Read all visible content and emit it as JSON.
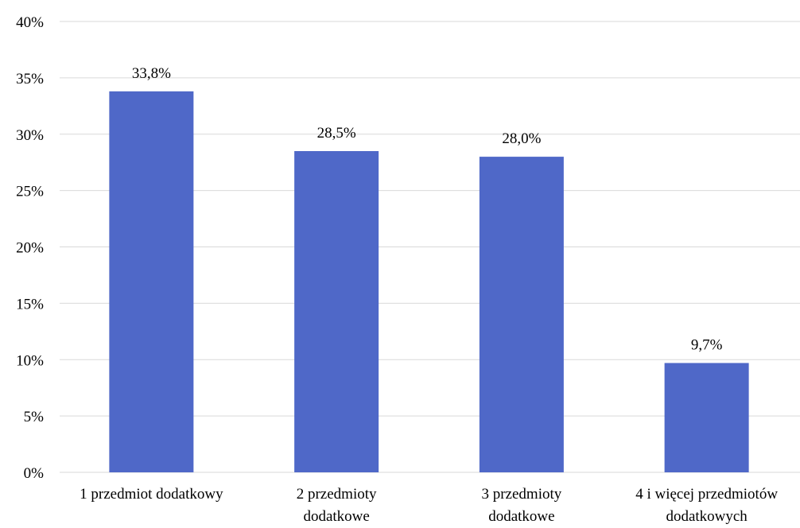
{
  "chart_data": {
    "type": "bar",
    "title": "",
    "xlabel": "",
    "ylabel": "",
    "categories": [
      [
        "1 przedmiot dodatkowy"
      ],
      [
        "2  przedmioty",
        "dodatkowe"
      ],
      [
        "3 przedmioty",
        "dodatkowe"
      ],
      [
        "4 i więcej przedmiotów",
        "dodatkowych"
      ]
    ],
    "values": [
      33.8,
      28.5,
      28.0,
      9.7
    ],
    "data_labels": [
      "33,8%",
      "28,5%",
      "28,0%",
      "9,7%"
    ],
    "ylim": [
      0,
      40
    ],
    "yticks": [
      0,
      5,
      10,
      15,
      20,
      25,
      30,
      35,
      40
    ],
    "ytick_labels": [
      "0%",
      "5%",
      "10%",
      "15%",
      "20%",
      "25%",
      "30%",
      "35%",
      "40%"
    ],
    "grid": true,
    "legend": "none",
    "colors": {
      "bar": "#4F68C8",
      "grid": "#D9D9D9",
      "text": "#000000"
    }
  }
}
